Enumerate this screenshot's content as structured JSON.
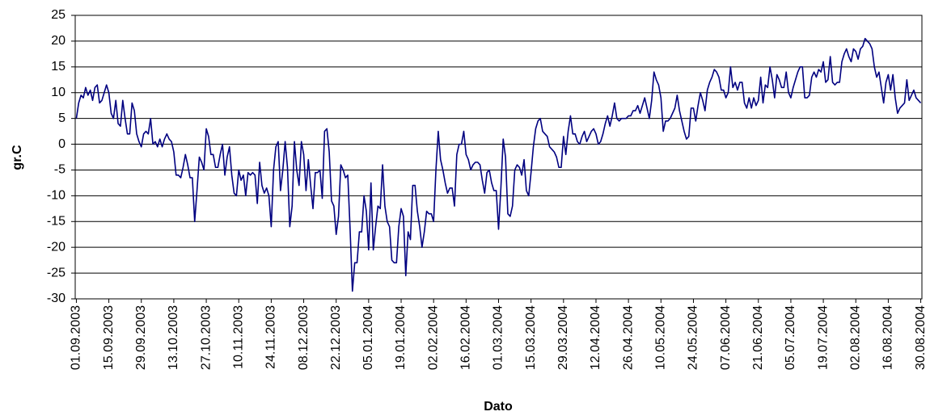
{
  "chart_data": {
    "type": "line",
    "y_label": "gr.C",
    "x_label": "Dato",
    "categories": [
      "01.09.2003",
      null,
      null,
      null,
      null,
      null,
      null,
      null,
      null,
      null,
      null,
      null,
      null,
      null,
      "15.09.2003",
      null,
      null,
      null,
      null,
      null,
      null,
      null,
      null,
      null,
      null,
      null,
      null,
      null,
      "29.09.2003",
      null,
      null,
      null,
      null,
      null,
      null,
      null,
      null,
      null,
      null,
      null,
      null,
      null,
      "13.10.2003",
      null,
      null,
      null,
      null,
      null,
      null,
      null,
      null,
      null,
      null,
      null,
      null,
      null,
      "27.10.2003",
      null,
      null,
      null,
      null,
      null,
      null,
      null,
      null,
      null,
      null,
      null,
      null,
      null,
      "10.11.2003",
      null,
      null,
      null,
      null,
      null,
      null,
      null,
      null,
      null,
      null,
      null,
      null,
      null,
      "24.11.2003",
      null,
      null,
      null,
      null,
      null,
      null,
      null,
      null,
      null,
      null,
      null,
      null,
      null,
      "08.12.2003",
      null,
      null,
      null,
      null,
      null,
      null,
      null,
      null,
      null,
      null,
      null,
      null,
      null,
      "22.12.2003",
      null,
      null,
      null,
      null,
      null,
      null,
      null,
      null,
      null,
      null,
      null,
      null,
      null,
      "05.01.2004",
      null,
      null,
      null,
      null,
      null,
      null,
      null,
      null,
      null,
      null,
      null,
      null,
      null,
      "19.01.2004",
      null,
      null,
      null,
      null,
      null,
      null,
      null,
      null,
      null,
      null,
      null,
      null,
      null,
      "02.02.2004",
      null,
      null,
      null,
      null,
      null,
      null,
      null,
      null,
      null,
      null,
      null,
      null,
      null,
      "16.02.2004",
      null,
      null,
      null,
      null,
      null,
      null,
      null,
      null,
      null,
      null,
      null,
      null,
      null,
      "01.03.2004",
      null,
      null,
      null,
      null,
      null,
      null,
      null,
      null,
      null,
      null,
      null,
      null,
      null,
      "15.03.2004",
      null,
      null,
      null,
      null,
      null,
      null,
      null,
      null,
      null,
      null,
      null,
      null,
      null,
      "29.03.2004",
      null,
      null,
      null,
      null,
      null,
      null,
      null,
      null,
      null,
      null,
      null,
      null,
      null,
      "12.04.2004",
      null,
      null,
      null,
      null,
      null,
      null,
      null,
      null,
      null,
      null,
      null,
      null,
      null,
      "26.04.2004",
      null,
      null,
      null,
      null,
      null,
      null,
      null,
      null,
      null,
      null,
      null,
      null,
      null,
      "10.05.2004",
      null,
      null,
      null,
      null,
      null,
      null,
      null,
      null,
      null,
      null,
      null,
      null,
      null,
      "24.05.2004",
      null,
      null,
      null,
      null,
      null,
      null,
      null,
      null,
      null,
      null,
      null,
      null,
      null,
      "07.06.2004",
      null,
      null,
      null,
      null,
      null,
      null,
      null,
      null,
      null,
      null,
      null,
      null,
      null,
      "21.06.2004",
      null,
      null,
      null,
      null,
      null,
      null,
      null,
      null,
      null,
      null,
      null,
      null,
      null,
      "05.07.2004",
      null,
      null,
      null,
      null,
      null,
      null,
      null,
      null,
      null,
      null,
      null,
      null,
      null,
      "19.07.2004",
      null,
      null,
      null,
      null,
      null,
      null,
      null,
      null,
      null,
      null,
      null,
      null,
      null,
      "02.08.2004",
      null,
      null,
      null,
      null,
      null,
      null,
      null,
      null,
      null,
      null,
      null,
      null,
      null,
      "16.08.2004",
      null,
      null,
      null,
      null,
      null,
      null,
      null,
      null,
      null,
      null,
      null,
      null,
      null,
      "30.08.2004"
    ],
    "values": [
      5,
      8,
      9.5,
      9,
      11,
      9.5,
      10.5,
      8.5,
      11,
      11.5,
      8,
      8.5,
      10,
      11.5,
      10,
      6,
      5,
      8.5,
      4,
      3.5,
      8.5,
      5,
      2,
      2,
      8,
      6.5,
      2,
      0.5,
      -0.5,
      2,
      2.5,
      2,
      5,
      0,
      0.5,
      -0.5,
      1,
      -0.5,
      1,
      2,
      1,
      0.5,
      -1.5,
      -6,
      -6,
      -6.5,
      -4.5,
      -2,
      -4,
      -6.5,
      -6.5,
      -15,
      -9,
      -2.5,
      -3.5,
      -5,
      3,
      1.5,
      -2,
      -2,
      -4.5,
      -4.5,
      -2,
      0,
      -6,
      -2.5,
      -0.5,
      -6,
      -9.5,
      -10,
      -5,
      -7,
      -6,
      -10,
      -5.5,
      -6,
      -5.5,
      -6,
      -11.5,
      -3.5,
      -8,
      -9.5,
      -8.5,
      -10,
      -16,
      -5,
      -0.5,
      0.5,
      -9,
      -5,
      0.5,
      -4.5,
      -16,
      -12,
      0.5,
      -5,
      -8,
      0.5,
      -2,
      -9,
      -3,
      -8,
      -12.5,
      -5.5,
      -5.5,
      -5,
      -10.5,
      2.5,
      3,
      -1.5,
      -11,
      -12,
      -17.5,
      -14,
      -4,
      -5,
      -6.5,
      -6,
      -16.5,
      -28.5,
      -23,
      -23,
      -17,
      -17,
      -10,
      -13,
      -20.5,
      -7.5,
      -20.5,
      -16,
      -12,
      -12.5,
      -4,
      -12,
      -15,
      -16,
      -22.5,
      -23,
      -23,
      -16,
      -12.5,
      -14,
      -25.5,
      -17,
      -18.5,
      -8,
      -8,
      -13,
      -16,
      -20,
      -17,
      -13,
      -13.5,
      -13.5,
      -15,
      -5,
      2.5,
      -3,
      -5,
      -7.5,
      -9.5,
      -8.5,
      -8.5,
      -12,
      -2,
      0,
      0,
      2.5,
      -2,
      -3,
      -5,
      -4,
      -3.5,
      -3.5,
      -4,
      -7,
      -9.5,
      -5.5,
      -5,
      -7.5,
      -9,
      -9,
      -16.5,
      -8.5,
      1,
      -2.5,
      -13.5,
      -14,
      -12,
      -5,
      -4,
      -4.5,
      -6,
      -3,
      -9,
      -10,
      -5.5,
      -0.5,
      3,
      4.5,
      5,
      2.5,
      2,
      1.5,
      -0.5,
      -1,
      -1.5,
      -2.5,
      -4.5,
      -4.5,
      1.5,
      -2,
      2.5,
      5.5,
      2,
      2,
      0.5,
      0,
      1.5,
      2.5,
      0.5,
      1.5,
      2.5,
      3,
      2,
      0,
      0.5,
      2,
      4,
      5.5,
      3.5,
      5.5,
      8,
      5,
      4.5,
      5,
      5,
      5,
      5.5,
      5.5,
      6.5,
      6.5,
      7.5,
      6,
      7.5,
      9,
      7,
      5,
      8.5,
      14,
      12.5,
      11.5,
      9,
      2.5,
      4.5,
      4.5,
      5,
      6,
      7,
      9.5,
      6.5,
      4.5,
      2.5,
      1,
      1.5,
      7,
      7,
      4.5,
      7.5,
      10,
      8.5,
      6.5,
      10.5,
      12,
      13,
      14.5,
      14,
      13,
      10.5,
      10.5,
      9,
      10,
      15,
      11,
      12,
      10.5,
      12,
      12,
      8,
      7,
      9,
      7,
      9,
      7.5,
      8.5,
      13,
      8,
      11.5,
      11,
      15,
      12.5,
      9,
      13.5,
      12.5,
      11,
      11,
      14,
      10,
      9,
      11,
      12.5,
      14,
      15,
      15,
      9,
      9,
      9.5,
      13,
      14,
      13,
      14.5,
      14,
      16,
      12,
      12.5,
      17,
      12,
      11.5,
      12,
      12,
      16,
      17.5,
      18.5,
      17,
      16,
      18.5,
      18,
      16.5,
      18.5,
      19,
      20.5,
      20,
      19.5,
      18.5,
      15,
      13,
      14,
      11,
      8,
      12,
      13.5,
      10.5,
      13.5,
      9,
      6,
      7,
      7.5,
      8,
      12.5,
      8.5,
      9.5,
      10.5,
      9,
      8.5,
      8
    ],
    "color": "#000080",
    "ylim": [
      -30,
      25
    ],
    "yticks": [
      -30,
      -25,
      -20,
      -15,
      -10,
      -5,
      0,
      5,
      10,
      15,
      20,
      25
    ],
    "grid": true
  }
}
